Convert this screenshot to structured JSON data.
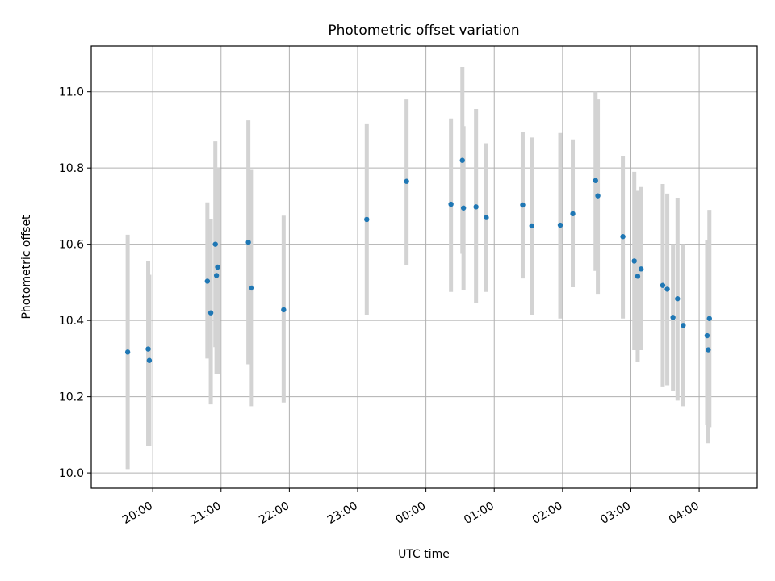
{
  "chart_data": {
    "type": "scatter",
    "title": "Photometric offset variation",
    "xlabel": "UTC time",
    "ylabel": "Photometric offset",
    "x_axis_kind": "time",
    "x_reference_time": "19:00",
    "xlim": [
      "19:06",
      "04:51"
    ],
    "ylim": [
      9.96,
      11.12
    ],
    "grid": true,
    "x_ticks": [
      "20:00",
      "21:00",
      "22:00",
      "23:00",
      "00:00",
      "01:00",
      "02:00",
      "03:00",
      "04:00"
    ],
    "y_ticks": [
      "10.0",
      "10.2",
      "10.4",
      "10.6",
      "10.8",
      "11.0"
    ],
    "colors": {
      "points": "#1f77b4",
      "errorbars": "#d3d3d3",
      "grid": "#b0b0b0"
    },
    "series": [
      {
        "points": [
          {
            "x": "19:38",
            "y": 10.317,
            "err_low": 10.01,
            "err_high": 10.625
          },
          {
            "x": "19:56",
            "y": 10.325,
            "err_low": 10.07,
            "err_high": 10.555
          },
          {
            "x": "19:57",
            "y": 10.295,
            "err_low": 10.07,
            "err_high": 10.52
          },
          {
            "x": "20:48",
            "y": 10.503,
            "err_low": 10.3,
            "err_high": 10.71
          },
          {
            "x": "20:51",
            "y": 10.42,
            "err_low": 10.18,
            "err_high": 10.665
          },
          {
            "x": "20:55",
            "y": 10.6,
            "err_low": 10.33,
            "err_high": 10.87
          },
          {
            "x": "20:56",
            "y": 10.518,
            "err_low": 10.26,
            "err_high": 10.8
          },
          {
            "x": "20:57",
            "y": 10.54,
            "err_low": 10.26,
            "err_high": 10.8
          },
          {
            "x": "21:24",
            "y": 10.605,
            "err_low": 10.285,
            "err_high": 10.925
          },
          {
            "x": "21:27",
            "y": 10.485,
            "err_low": 10.175,
            "err_high": 10.795
          },
          {
            "x": "21:55",
            "y": 10.428,
            "err_low": 10.185,
            "err_high": 10.675
          },
          {
            "x": "23:08",
            "y": 10.665,
            "err_low": 10.415,
            "err_high": 10.915
          },
          {
            "x": "23:43",
            "y": 10.765,
            "err_low": 10.545,
            "err_high": 10.98
          },
          {
            "x": "00:22",
            "y": 10.705,
            "err_low": 10.475,
            "err_high": 10.93
          },
          {
            "x": "00:32",
            "y": 10.82,
            "err_low": 10.575,
            "err_high": 11.065
          },
          {
            "x": "00:33",
            "y": 10.695,
            "err_low": 10.48,
            "err_high": 10.91
          },
          {
            "x": "00:44",
            "y": 10.698,
            "err_low": 10.445,
            "err_high": 10.955
          },
          {
            "x": "00:53",
            "y": 10.67,
            "err_low": 10.475,
            "err_high": 10.865
          },
          {
            "x": "01:25",
            "y": 10.703,
            "err_low": 10.51,
            "err_high": 10.895
          },
          {
            "x": "01:33",
            "y": 10.648,
            "err_low": 10.415,
            "err_high": 10.88
          },
          {
            "x": "01:58",
            "y": 10.65,
            "err_low": 10.405,
            "err_high": 10.892
          },
          {
            "x": "02:09",
            "y": 10.68,
            "err_low": 10.487,
            "err_high": 10.875
          },
          {
            "x": "02:29",
            "y": 10.767,
            "err_low": 10.53,
            "err_high": 11.0
          },
          {
            "x": "02:31",
            "y": 10.727,
            "err_low": 10.47,
            "err_high": 10.98
          },
          {
            "x": "02:53",
            "y": 10.62,
            "err_low": 10.405,
            "err_high": 10.832
          },
          {
            "x": "03:03",
            "y": 10.556,
            "err_low": 10.322,
            "err_high": 10.79
          },
          {
            "x": "03:06",
            "y": 10.516,
            "err_low": 10.292,
            "err_high": 10.74
          },
          {
            "x": "03:09",
            "y": 10.535,
            "err_low": 10.322,
            "err_high": 10.75
          },
          {
            "x": "03:28",
            "y": 10.492,
            "err_low": 10.227,
            "err_high": 10.758
          },
          {
            "x": "03:32",
            "y": 10.482,
            "err_low": 10.23,
            "err_high": 10.733
          },
          {
            "x": "03:37",
            "y": 10.408,
            "err_low": 10.215,
            "err_high": 10.6
          },
          {
            "x": "03:41",
            "y": 10.457,
            "err_low": 10.19,
            "err_high": 10.722
          },
          {
            "x": "03:46",
            "y": 10.387,
            "err_low": 10.175,
            "err_high": 10.6
          },
          {
            "x": "04:07",
            "y": 10.36,
            "err_low": 10.125,
            "err_high": 10.612
          },
          {
            "x": "04:08",
            "y": 10.323,
            "err_low": 10.078,
            "err_high": 10.568
          },
          {
            "x": "04:09",
            "y": 10.405,
            "err_low": 10.12,
            "err_high": 10.69
          }
        ]
      }
    ]
  }
}
